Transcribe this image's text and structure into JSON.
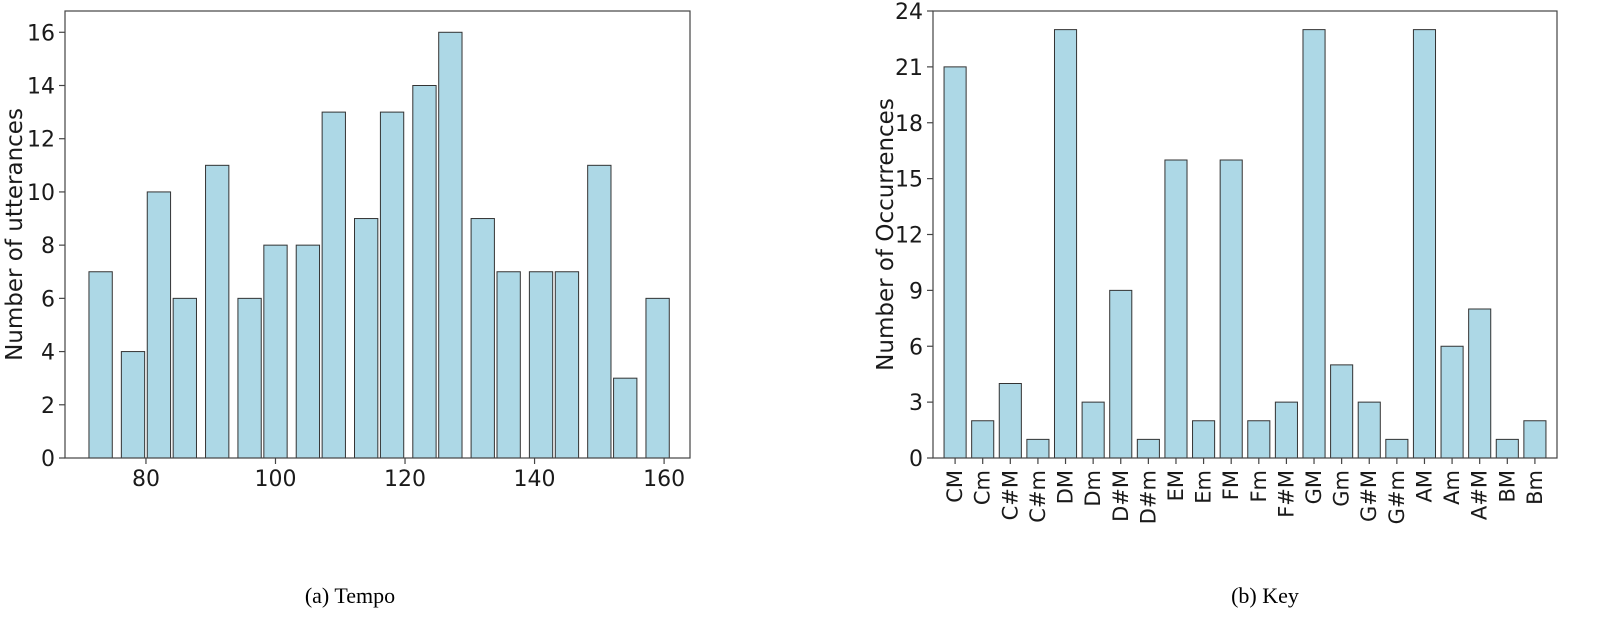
{
  "captions": [
    "(a) Tempo",
    "(b) Key"
  ],
  "colors": {
    "bar_fill": "#add8e6",
    "bar_edge": "#333333",
    "axes": "#444444",
    "text": "#1a1a1a"
  },
  "chart_data": [
    {
      "type": "bar",
      "title": "",
      "xlabel": "",
      "ylabel": "Number of utterances",
      "x": [
        73,
        78,
        82,
        86,
        91,
        96,
        100,
        105,
        109,
        114,
        118,
        123,
        127,
        132,
        136,
        141,
        145,
        150,
        154,
        159
      ],
      "values": [
        7,
        4,
        10,
        6,
        11,
        6,
        8,
        8,
        13,
        9,
        13,
        14,
        16,
        9,
        7,
        7,
        7,
        11,
        3,
        6
      ],
      "bar_width": 3.6,
      "xlim": [
        67.5,
        164
      ],
      "ylim": [
        0,
        16.8
      ],
      "xticks": [
        80,
        100,
        120,
        140,
        160
      ],
      "yticks": [
        0,
        2,
        4,
        6,
        8,
        10,
        12,
        14,
        16
      ],
      "grid": false,
      "legend": "none"
    },
    {
      "type": "bar",
      "title": "",
      "xlabel": "",
      "ylabel": "Number of Occurrences",
      "categories": [
        "CM",
        "Cm",
        "C#M",
        "C#m",
        "DM",
        "Dm",
        "D#M",
        "D#m",
        "EM",
        "Em",
        "FM",
        "Fm",
        "F#M",
        "GM",
        "Gm",
        "G#M",
        "G#m",
        "AM",
        "Am",
        "A#M",
        "BM",
        "Bm"
      ],
      "values": [
        21,
        2,
        4,
        1,
        23,
        3,
        9,
        1,
        16,
        2,
        16,
        2,
        3,
        23,
        5,
        3,
        1,
        23,
        6,
        8,
        1,
        2
      ],
      "ylim": [
        0,
        24
      ],
      "yticks": [
        0,
        3,
        6,
        9,
        12,
        15,
        18,
        21,
        24
      ],
      "grid": false,
      "legend": "none"
    }
  ]
}
